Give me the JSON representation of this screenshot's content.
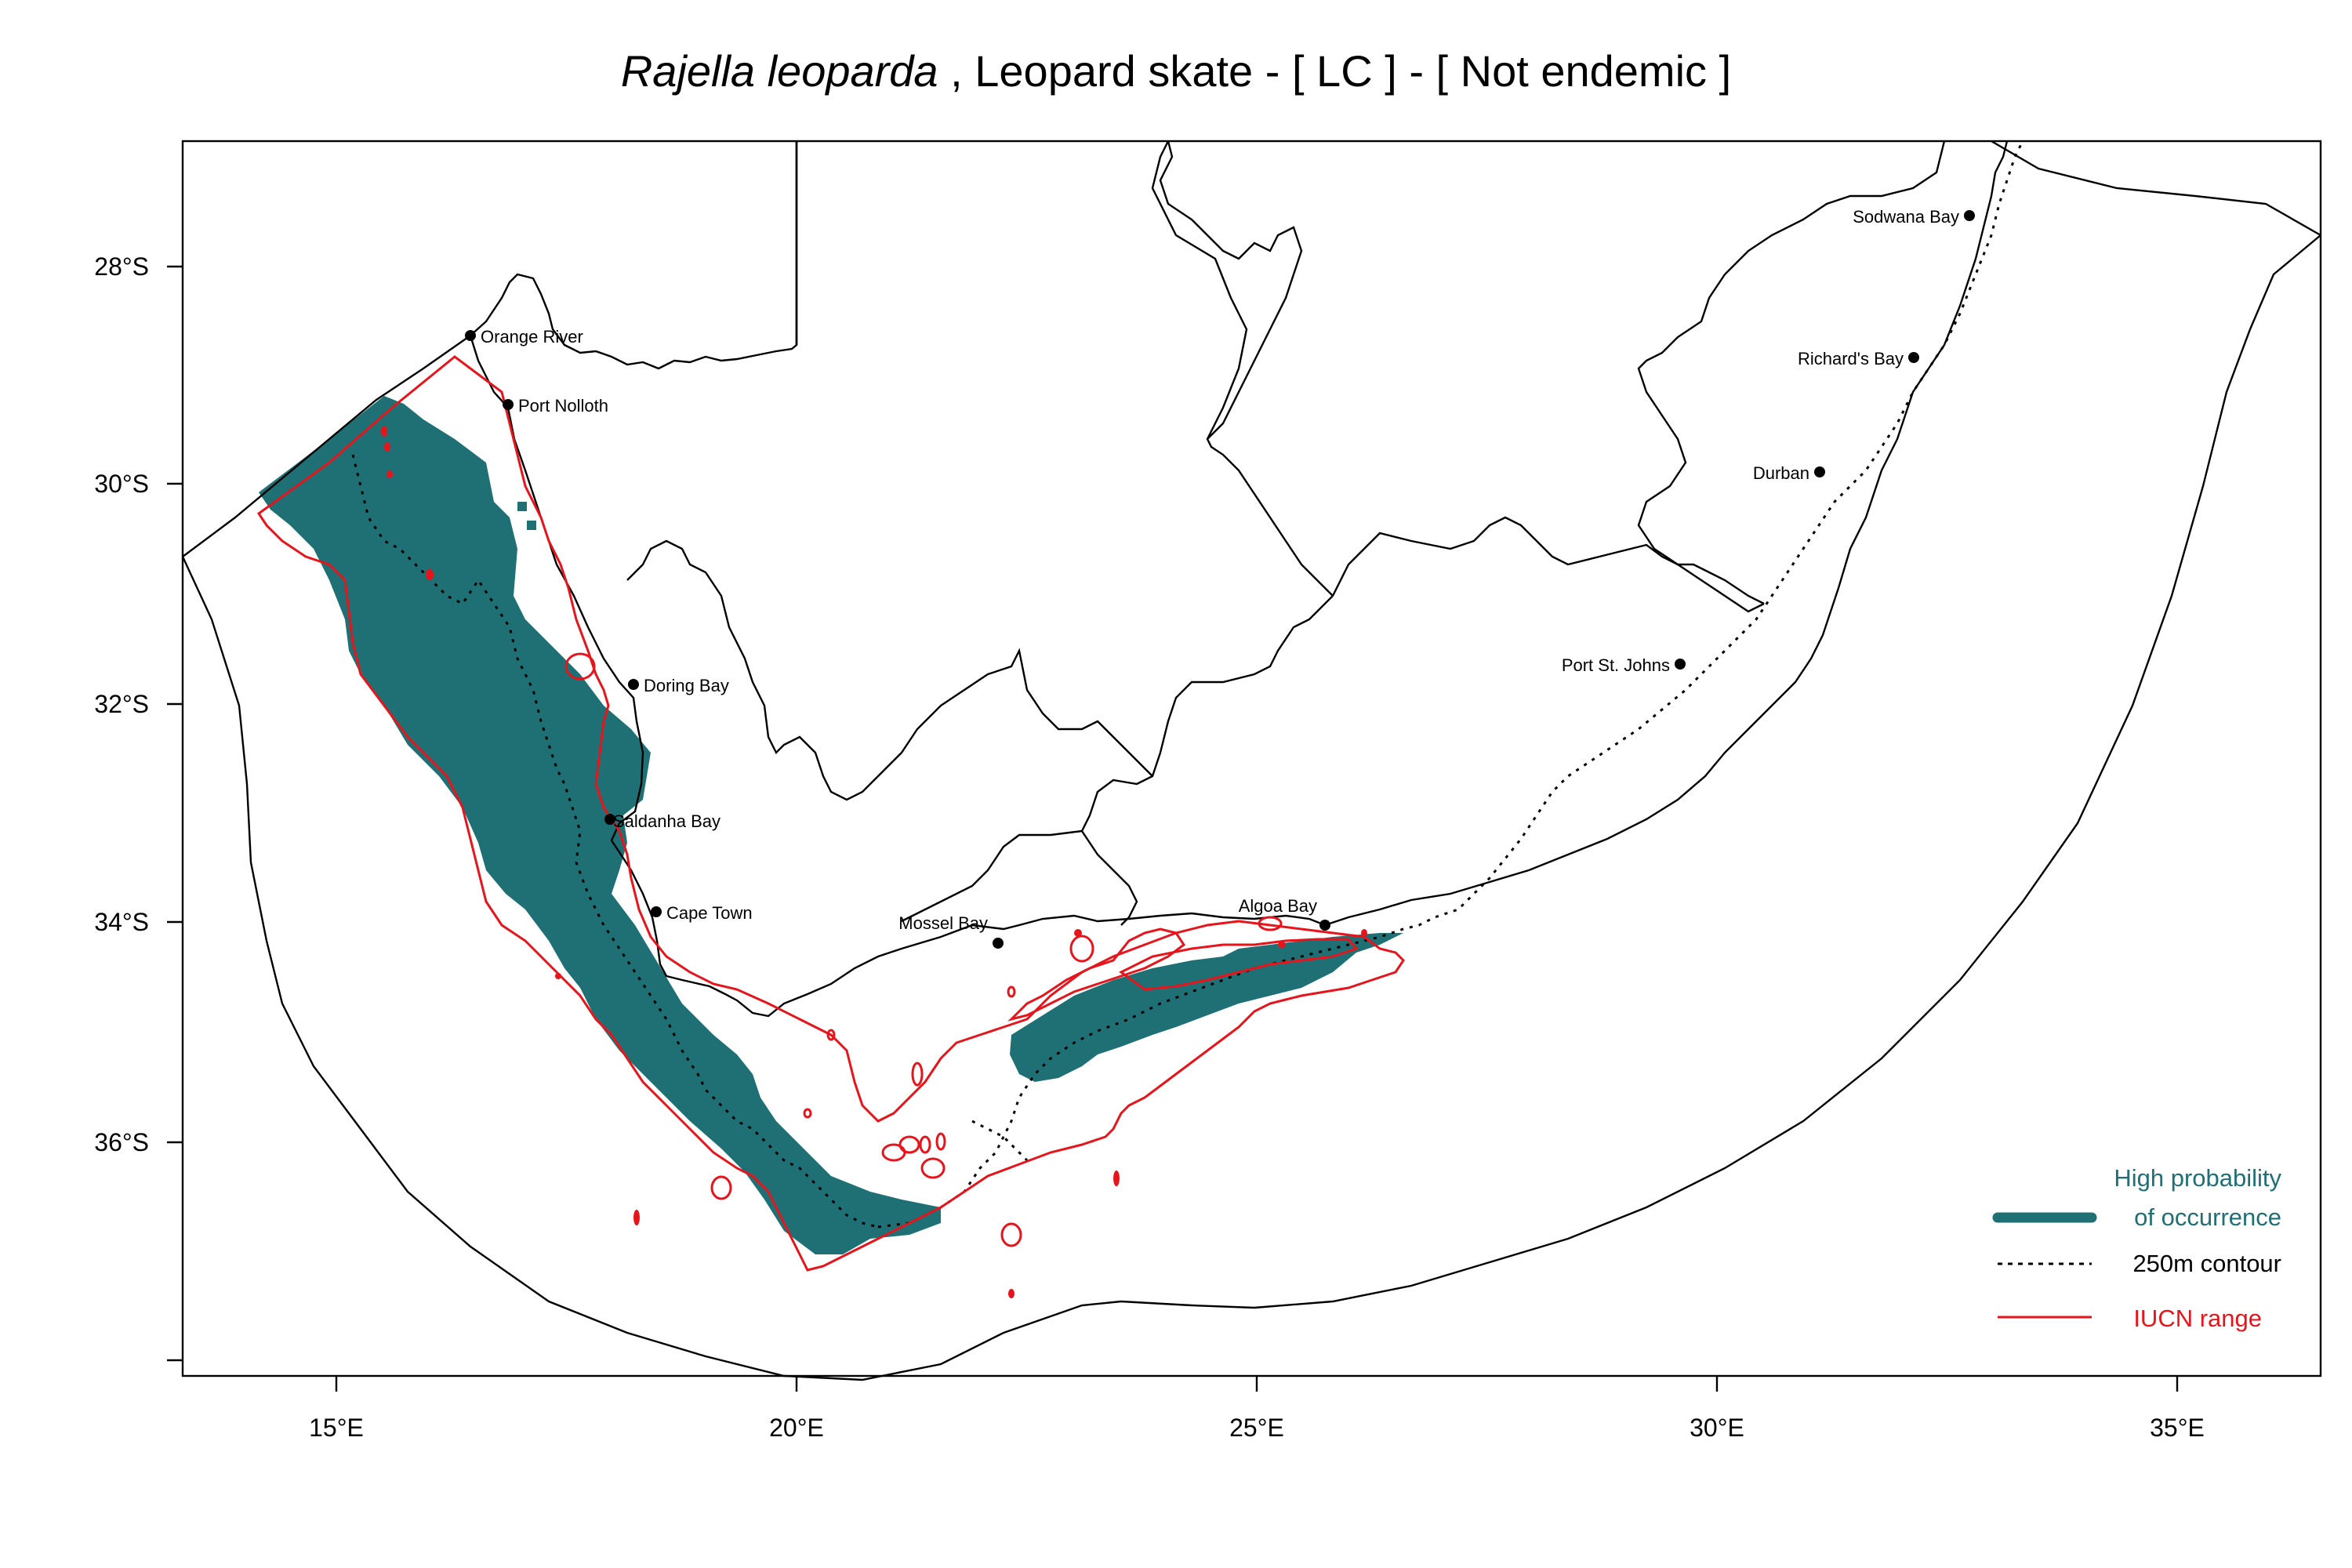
{
  "title": {
    "species": "Rajella leoparda",
    "rest": " , Leopard skate  - [ LC ] - [ Not endemic ]"
  },
  "axes": {
    "x_ticks": [
      "15°E",
      "20°E",
      "25°E",
      "30°E",
      "35°E"
    ],
    "y_ticks": [
      "28°S",
      "30°S",
      "32°S",
      "34°S",
      "36°S"
    ]
  },
  "places": [
    {
      "name": "Orange River"
    },
    {
      "name": "Port Nolloth"
    },
    {
      "name": "Doring Bay"
    },
    {
      "name": "Saldanha Bay"
    },
    {
      "name": "Cape Town"
    },
    {
      "name": "Mossel Bay"
    },
    {
      "name": "Algoa Bay"
    },
    {
      "name": "Port St. Johns"
    },
    {
      "name": "Durban"
    },
    {
      "name": "Richard's Bay"
    },
    {
      "name": "Sodwana Bay"
    }
  ],
  "legend": {
    "occurrence_line1": "High probability",
    "occurrence_line2": "of occurrence",
    "contour": "250m contour",
    "iucn": "IUCN range"
  },
  "colors": {
    "occurrence": "#1f7075",
    "iucn": "#e8141b",
    "contour": "#000000",
    "coast": "#000000"
  }
}
